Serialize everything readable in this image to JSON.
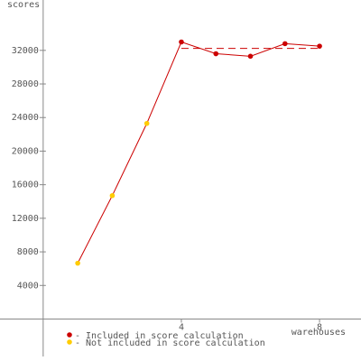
{
  "chart_data": {
    "type": "line",
    "x_label": "warehouses",
    "y_label": "scores",
    "x": [
      1,
      2,
      3,
      4,
      5,
      6,
      7,
      8
    ],
    "values": [
      6650,
      14700,
      23300,
      33000,
      31600,
      31300,
      32800,
      32500
    ],
    "included": [
      false,
      false,
      false,
      true,
      true,
      true,
      true,
      true
    ],
    "line_color": "#cc0000",
    "reference_line": {
      "value": 32240,
      "color": "#cc0000"
    },
    "legend": [
      {
        "name": "- Included in score calculation",
        "color": "#cc0000"
      },
      {
        "name": "- Not included in score calculation",
        "color": "#ffcc00"
      }
    ],
    "xlim": [
      -1.25,
      9.2
    ],
    "ylim": [
      -5000,
      38000
    ],
    "xticks": [
      4,
      8
    ],
    "yticks": [
      4000,
      8000,
      12000,
      16000,
      20000,
      24000,
      28000,
      32000
    ]
  }
}
